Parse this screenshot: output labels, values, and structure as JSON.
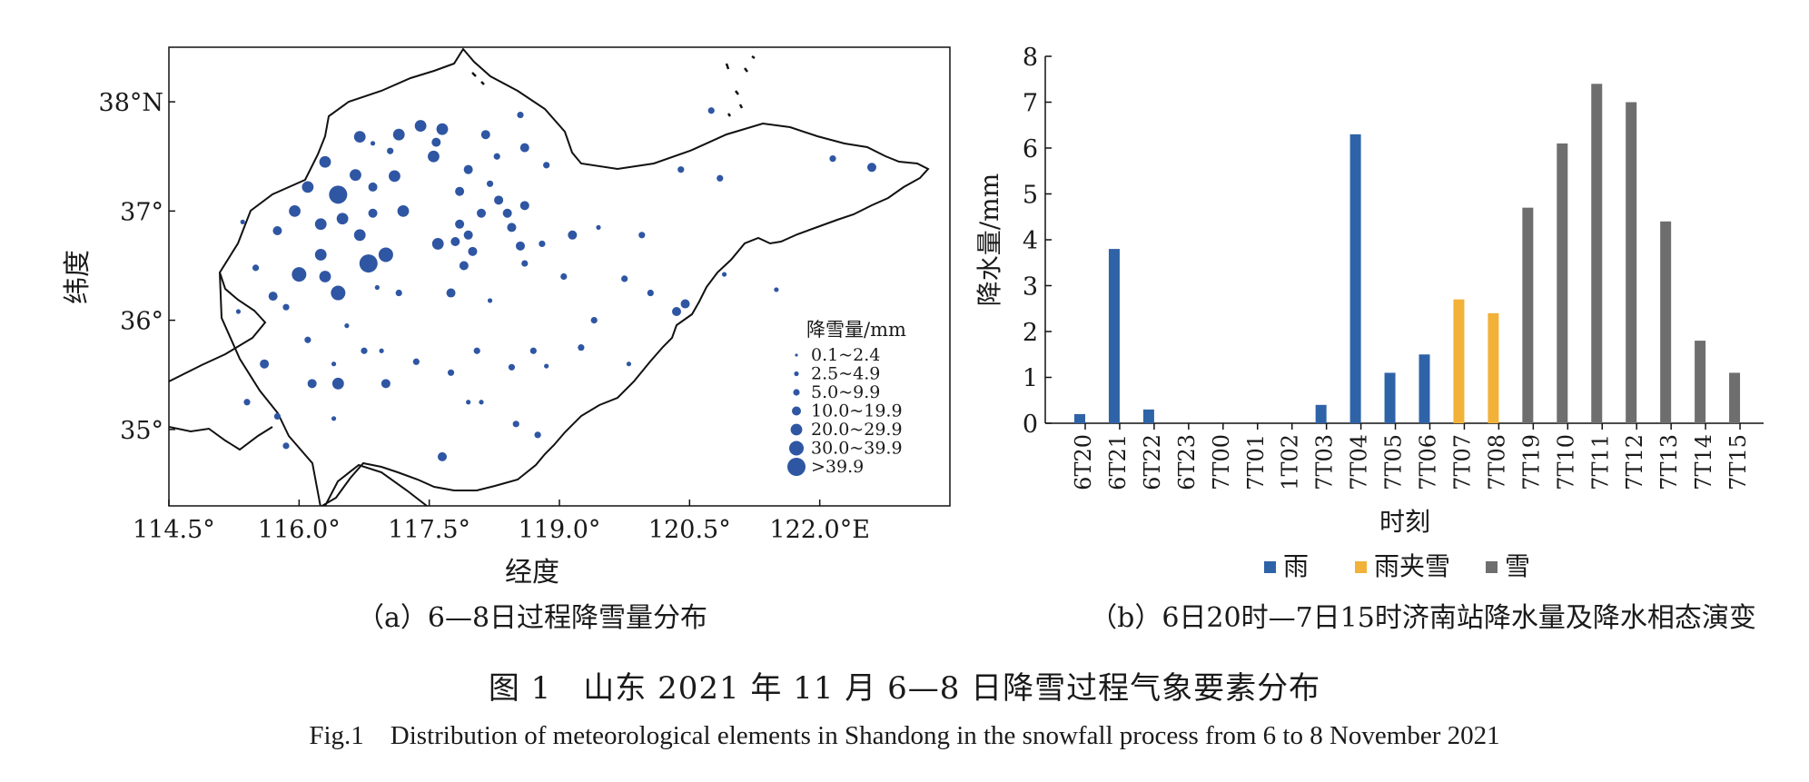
{
  "figure": {
    "title_cn": "图 1　山东 2021 年 11 月 6—8 日降雪过程气象要素分布",
    "title_en": "Fig.1　Distribution of meteorological elements in Shandong in the snowfall process from 6 to 8 November 2021"
  },
  "chart_data": [
    {
      "type": "scatter",
      "subtitle": "（a）6—8日过程降雪量分布",
      "xlabel": "经度",
      "ylabel": "纬度",
      "xlim": [
        114.5,
        123.5
      ],
      "ylim": [
        34.3,
        38.5
      ],
      "x_ticks": [
        {
          "value": 114.5,
          "label": "114.5°"
        },
        {
          "value": 116.0,
          "label": "116.0°"
        },
        {
          "value": 117.5,
          "label": "117.5°"
        },
        {
          "value": 119.0,
          "label": "119.0°"
        },
        {
          "value": 120.5,
          "label": "120.5°"
        },
        {
          "value": 122.0,
          "label": "122.0°E"
        }
      ],
      "y_ticks": [
        {
          "value": 35,
          "label": "35°"
        },
        {
          "value": 36,
          "label": "36°"
        },
        {
          "value": 37,
          "label": "37°"
        },
        {
          "value": 38,
          "label": "38°N"
        }
      ],
      "legend": {
        "title": "降雪量/mm",
        "placement": "bottom-right",
        "classes": [
          "0.1~2.4",
          "2.5~4.9",
          "5.0~9.9",
          "10.0~19.9",
          "20.0~29.9",
          "30.0~39.9",
          ">39.9"
        ]
      },
      "marker_color": "#2f56a3",
      "points": [
        [
          116.3,
          37.45,
          4
        ],
        [
          116.65,
          37.33,
          4
        ],
        [
          116.1,
          37.22,
          4
        ],
        [
          115.95,
          37.0,
          4
        ],
        [
          116.25,
          36.88,
          4
        ],
        [
          116.5,
          36.93,
          4
        ],
        [
          115.75,
          36.82,
          3
        ],
        [
          116.85,
          36.98,
          3
        ],
        [
          116.7,
          36.78,
          4
        ],
        [
          116.8,
          36.52,
          6
        ],
        [
          117.0,
          36.6,
          5
        ],
        [
          116.25,
          36.6,
          4
        ],
        [
          116.0,
          36.42,
          5
        ],
        [
          116.3,
          36.4,
          4
        ],
        [
          116.45,
          36.25,
          5
        ],
        [
          115.7,
          36.22,
          3
        ],
        [
          115.85,
          36.12,
          2
        ],
        [
          115.5,
          36.48,
          2
        ],
        [
          115.3,
          36.08,
          1
        ],
        [
          116.9,
          36.3,
          1
        ],
        [
          117.15,
          36.25,
          2
        ],
        [
          116.45,
          37.15,
          6
        ],
        [
          116.7,
          37.68,
          4
        ],
        [
          117.05,
          37.55,
          2
        ],
        [
          117.15,
          37.7,
          4
        ],
        [
          117.4,
          37.78,
          4
        ],
        [
          117.65,
          37.75,
          4
        ],
        [
          117.58,
          37.63,
          3
        ],
        [
          117.55,
          37.5,
          4
        ],
        [
          117.1,
          37.32,
          4
        ],
        [
          116.85,
          37.22,
          3
        ],
        [
          117.2,
          37.0,
          4
        ],
        [
          117.95,
          37.38,
          3
        ],
        [
          118.15,
          37.7,
          3
        ],
        [
          118.28,
          37.5,
          2
        ],
        [
          118.55,
          37.88,
          2
        ],
        [
          118.6,
          37.58,
          3
        ],
        [
          118.85,
          37.42,
          2
        ],
        [
          117.85,
          37.18,
          3
        ],
        [
          118.2,
          37.25,
          2
        ],
        [
          118.3,
          37.1,
          3
        ],
        [
          117.85,
          36.88,
          3
        ],
        [
          118.1,
          36.98,
          3
        ],
        [
          117.95,
          36.78,
          3
        ],
        [
          118.4,
          36.98,
          3
        ],
        [
          118.6,
          37.05,
          3
        ],
        [
          118.45,
          36.85,
          3
        ],
        [
          117.6,
          36.7,
          4
        ],
        [
          117.8,
          36.72,
          3
        ],
        [
          118.0,
          36.63,
          3
        ],
        [
          117.9,
          36.5,
          3
        ],
        [
          118.55,
          36.68,
          3
        ],
        [
          118.8,
          36.7,
          2
        ],
        [
          118.6,
          36.52,
          2
        ],
        [
          119.15,
          36.78,
          3
        ],
        [
          119.45,
          36.85,
          1
        ],
        [
          119.05,
          36.4,
          2
        ],
        [
          119.4,
          36.0,
          2
        ],
        [
          117.75,
          36.25,
          3
        ],
        [
          118.2,
          36.18,
          1
        ],
        [
          116.1,
          35.82,
          2
        ],
        [
          116.4,
          35.6,
          1
        ],
        [
          116.15,
          35.42,
          3
        ],
        [
          116.45,
          35.42,
          4
        ],
        [
          116.95,
          35.72,
          1
        ],
        [
          116.75,
          35.72,
          2
        ],
        [
          117.0,
          35.42,
          3
        ],
        [
          117.35,
          35.62,
          2
        ],
        [
          117.75,
          35.52,
          2
        ],
        [
          118.05,
          35.72,
          2
        ],
        [
          118.45,
          35.57,
          2
        ],
        [
          118.7,
          35.72,
          2
        ],
        [
          118.85,
          35.58,
          1
        ],
        [
          119.25,
          35.75,
          2
        ],
        [
          118.1,
          35.25,
          1
        ],
        [
          118.75,
          34.95,
          2
        ],
        [
          118.5,
          35.05,
          2
        ],
        [
          117.65,
          34.75,
          3
        ],
        [
          116.4,
          35.1,
          1
        ],
        [
          115.6,
          35.6,
          3
        ],
        [
          115.4,
          35.25,
          2
        ],
        [
          115.75,
          35.12,
          2
        ],
        [
          115.85,
          34.85,
          2
        ],
        [
          119.75,
          36.38,
          2
        ],
        [
          120.05,
          36.25,
          2
        ],
        [
          119.95,
          36.78,
          2
        ],
        [
          120.4,
          37.38,
          2
        ],
        [
          120.85,
          37.3,
          2
        ],
        [
          120.35,
          36.08,
          3
        ],
        [
          120.45,
          36.15,
          3
        ],
        [
          120.9,
          36.42,
          1
        ],
        [
          121.5,
          36.28,
          1
        ],
        [
          120.75,
          37.92,
          2
        ],
        [
          122.15,
          37.48,
          2
        ],
        [
          122.6,
          37.4,
          3
        ],
        [
          116.85,
          37.62,
          1
        ],
        [
          115.35,
          36.9,
          1
        ],
        [
          116.55,
          35.95,
          1
        ],
        [
          117.95,
          35.25,
          1
        ],
        [
          119.8,
          35.6,
          1
        ]
      ]
    },
    {
      "type": "bar",
      "subtitle": "（b）6日20时—7日15时济南站降水量及降水相态演变",
      "xlabel": "时刻",
      "ylabel": "降水量/mm",
      "ylim": [
        0,
        8
      ],
      "y_ticks": [
        0,
        1,
        2,
        3,
        4,
        5,
        6,
        7,
        8
      ],
      "categories": [
        "6T20",
        "6T21",
        "6T22",
        "6T23",
        "7T00",
        "7T01",
        "1T02",
        "7T03",
        "7T04",
        "7T05",
        "7T06",
        "7T07",
        "7T08",
        "7T19",
        "7T10",
        "7T11",
        "7T12",
        "7T13",
        "7T14",
        "7T15"
      ],
      "values": [
        0.2,
        3.8,
        0.3,
        0,
        0,
        0,
        0,
        0.4,
        6.3,
        1.1,
        1.5,
        2.7,
        2.4,
        4.7,
        6.1,
        7.4,
        7.0,
        4.4,
        1.8,
        1.1
      ],
      "phase": [
        0,
        0,
        0,
        0,
        0,
        0,
        0,
        0,
        0,
        0,
        0,
        1,
        1,
        2,
        2,
        2,
        2,
        2,
        2,
        2
      ],
      "legend": [
        {
          "name": "雨",
          "color": "#2f63a8"
        },
        {
          "name": "雨夹雪",
          "color": "#f2b138"
        },
        {
          "name": "雪",
          "color": "#6e6e6e"
        }
      ],
      "legend_placement": "bottom"
    }
  ]
}
